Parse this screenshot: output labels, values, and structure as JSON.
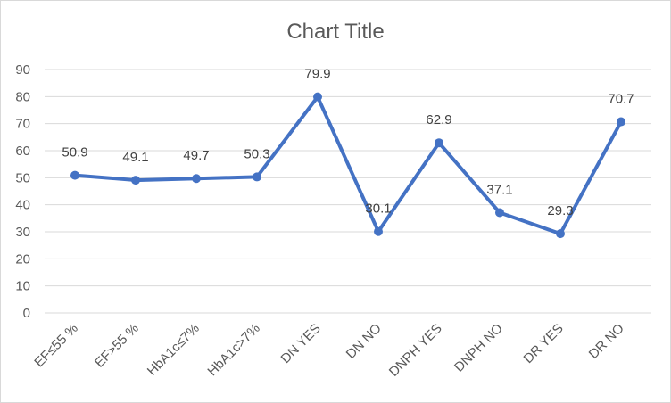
{
  "chart_data": {
    "type": "line",
    "title": "Chart Title",
    "xlabel": "",
    "ylabel": "",
    "categories": [
      "EF≤55 %",
      "EF>55 %",
      "HbA1c≤7%",
      "HbA1c>7%",
      "DN YES",
      "DN NO",
      "DNPH YES",
      "DNPH NO",
      "DR YES",
      "DR NO"
    ],
    "series": [
      {
        "values": [
          50.9,
          49.1,
          49.7,
          50.3,
          79.9,
          30.1,
          62.9,
          37.1,
          29.3,
          70.7
        ],
        "color": "#4472c4"
      }
    ],
    "data_labels": [
      "50.9",
      "49.1",
      "49.7",
      "50.3",
      "79.9",
      "30.1",
      "62.9",
      "37.1",
      "29.3",
      "70.7"
    ],
    "y_ticks": [
      "0",
      "10",
      "20",
      "30",
      "40",
      "50",
      "60",
      "70",
      "80",
      "90"
    ],
    "ylim": [
      0,
      90
    ],
    "grid": true,
    "legend": "none"
  }
}
